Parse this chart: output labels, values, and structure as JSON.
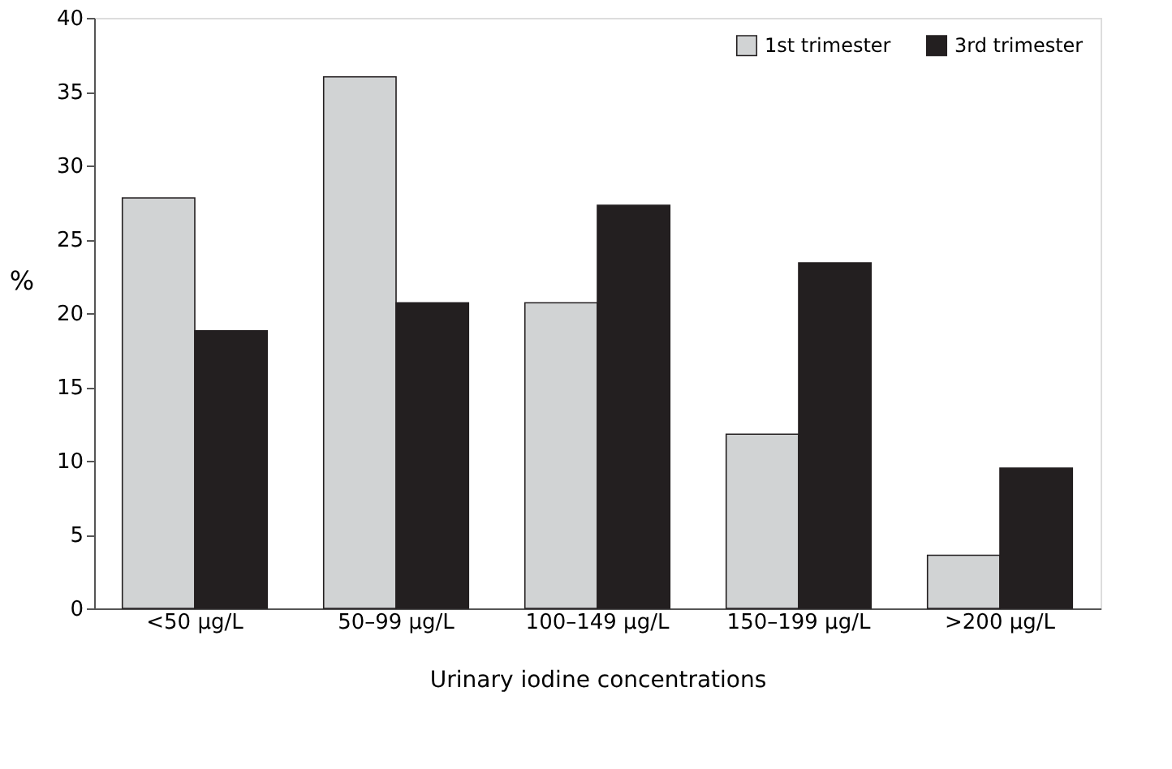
{
  "chart_data": {
    "type": "bar",
    "xlabel": "Urinary iodine concentrations",
    "ylabel": "%",
    "categories": [
      "<50 µg/L",
      "50–99 µg/L",
      "100–149 µg/L",
      "150–199 µg/L",
      ">200 µg/L"
    ],
    "series": [
      {
        "name": "1st trimester",
        "color": "#d1d3d4",
        "values": [
          27.8,
          36.0,
          20.7,
          11.8,
          3.6
        ]
      },
      {
        "name": "3rd trimester",
        "color": "#231f20",
        "values": [
          18.8,
          20.7,
          27.3,
          23.4,
          9.5
        ]
      }
    ],
    "ylim": [
      0,
      40
    ],
    "yticks": [
      0,
      5,
      10,
      15,
      20,
      25,
      30,
      35,
      40
    ],
    "grid": false,
    "legend": "top right"
  }
}
